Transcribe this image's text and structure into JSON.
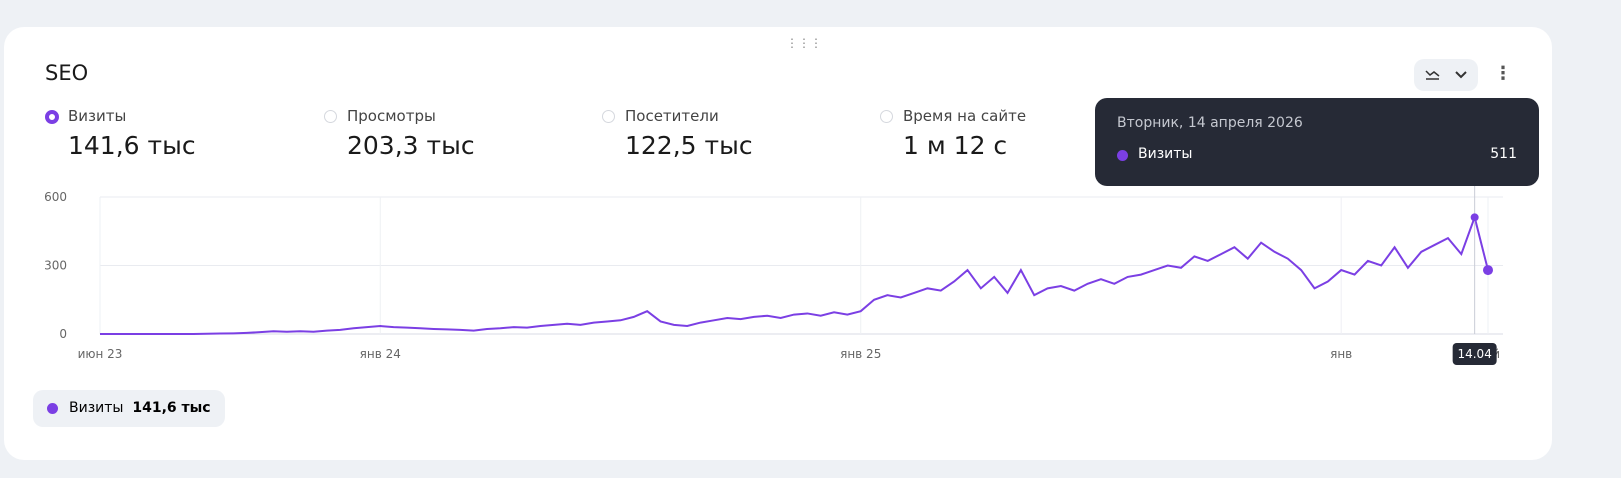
{
  "widget": {
    "title": "SEO"
  },
  "metrics": [
    {
      "name": "Визиты",
      "value": "141,6 тыс"
    },
    {
      "name": "Просмотры",
      "value": "203,3 тыс"
    },
    {
      "name": "Посетители",
      "value": "122,5 тыс"
    },
    {
      "name": "Время на сайте",
      "value": "1 м 12 с"
    }
  ],
  "chart_data": {
    "type": "line",
    "categories": [
      "июн 23",
      null,
      null,
      null,
      null,
      null,
      null,
      null,
      null,
      null,
      null,
      null,
      null,
      null,
      null,
      null,
      null,
      null,
      null,
      null,
      null,
      "янв 24",
      null,
      null,
      null,
      null,
      null,
      null,
      null,
      null,
      null,
      null,
      null,
      null,
      null,
      null,
      null,
      null,
      null,
      null,
      null,
      null,
      null,
      null,
      null,
      null,
      null,
      null,
      null,
      null,
      null,
      null,
      null,
      null,
      null,
      null,
      null,
      "янв 25",
      null,
      null,
      null,
      null,
      null,
      null,
      null,
      null,
      null,
      null,
      null,
      null,
      null,
      null,
      null,
      null,
      null,
      null,
      null,
      null,
      null,
      null,
      null,
      null,
      null,
      null,
      null,
      null,
      null,
      null,
      null,
      null,
      null,
      null,
      null,
      "янв",
      null,
      null,
      null,
      null,
      null,
      null,
      null,
      null,
      null,
      null,
      "май"
    ],
    "series": [
      {
        "name": "Визиты",
        "color": "#7b3fe4",
        "values": [
          0,
          0,
          0,
          0,
          0,
          0,
          0,
          0,
          1,
          2,
          3,
          5,
          8,
          12,
          10,
          12,
          10,
          15,
          18,
          25,
          30,
          35,
          30,
          28,
          25,
          22,
          20,
          18,
          15,
          22,
          25,
          30,
          28,
          35,
          40,
          45,
          40,
          50,
          55,
          60,
          75,
          100,
          55,
          40,
          35,
          50,
          60,
          70,
          65,
          75,
          80,
          70,
          85,
          90,
          80,
          95,
          85,
          100,
          150,
          170,
          160,
          180,
          200,
          190,
          230,
          280,
          200,
          250,
          180,
          280,
          170,
          200,
          210,
          190,
          220,
          240,
          220,
          250,
          260,
          280,
          300,
          290,
          340,
          320,
          350,
          380,
          330,
          400,
          360,
          330,
          280,
          200,
          230,
          280,
          260,
          320,
          300,
          380,
          290,
          360,
          390,
          420,
          350,
          511,
          280
        ]
      }
    ],
    "ylim": [
      0,
      600
    ],
    "yticks": [
      0,
      300,
      600
    ],
    "grid": true,
    "highlight_label": "14.04"
  },
  "tooltip": {
    "date": "Вторник, 14 апреля 2026"
  },
  "legend_total": "141,6 тыс"
}
